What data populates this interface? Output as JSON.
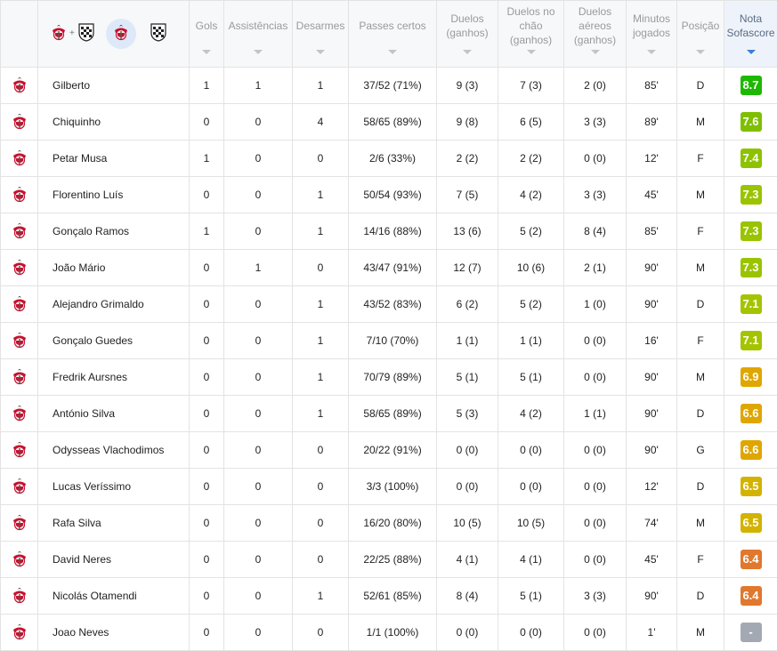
{
  "columns": [
    {
      "key": "team",
      "label": ""
    },
    {
      "key": "name",
      "label": ""
    },
    {
      "key": "goals",
      "label": "Gols"
    },
    {
      "key": "assists",
      "label": "Assistências"
    },
    {
      "key": "tackles",
      "label": "Desarmes"
    },
    {
      "key": "passes",
      "label": "Passes certos"
    },
    {
      "key": "duels",
      "label": "Duelos (ganhos)"
    },
    {
      "key": "ground",
      "label": "Duelos no chão (ganhos)"
    },
    {
      "key": "aerial",
      "label": "Duelos aéreos (ganhos)"
    },
    {
      "key": "minutes",
      "label": "Minutos jogados"
    },
    {
      "key": "position",
      "label": "Posição"
    },
    {
      "key": "rating",
      "label": "Nota Sofascore"
    }
  ],
  "team_filter": {
    "plus_symbol": "+"
  },
  "rating_colors": {
    "dark_green": "#1eb800",
    "green": "#7fbf00",
    "lime": "#a4c400",
    "yellow": "#d3b300",
    "amber": "#dfa600",
    "orange": "#e0782e",
    "none": "#a3a9b3"
  },
  "players": [
    {
      "name": "Gilberto",
      "goals": "1",
      "assists": "1",
      "tackles": "1",
      "passes": "37/52 (71%)",
      "duels": "9 (3)",
      "ground": "7 (3)",
      "aerial": "2 (0)",
      "minutes": "85'",
      "position": "D",
      "rating": "8.7",
      "rating_color": "#1eb800"
    },
    {
      "name": "Chiquinho",
      "goals": "0",
      "assists": "0",
      "tackles": "4",
      "passes": "58/65 (89%)",
      "duels": "9 (8)",
      "ground": "6 (5)",
      "aerial": "3 (3)",
      "minutes": "89'",
      "position": "M",
      "rating": "7.6",
      "rating_color": "#7fbf00"
    },
    {
      "name": "Petar Musa",
      "goals": "1",
      "assists": "0",
      "tackles": "0",
      "passes": "2/6 (33%)",
      "duels": "2 (2)",
      "ground": "2 (2)",
      "aerial": "0 (0)",
      "minutes": "12'",
      "position": "F",
      "rating": "7.4",
      "rating_color": "#8dc200"
    },
    {
      "name": "Florentino Luís",
      "goals": "0",
      "assists": "0",
      "tackles": "1",
      "passes": "50/54 (93%)",
      "duels": "7 (5)",
      "ground": "4 (2)",
      "aerial": "3 (3)",
      "minutes": "45'",
      "position": "M",
      "rating": "7.3",
      "rating_color": "#9ac300"
    },
    {
      "name": "Gonçalo Ramos",
      "goals": "1",
      "assists": "0",
      "tackles": "1",
      "passes": "14/16 (88%)",
      "duels": "13 (6)",
      "ground": "5 (2)",
      "aerial": "8 (4)",
      "minutes": "85'",
      "position": "F",
      "rating": "7.3",
      "rating_color": "#9ac300"
    },
    {
      "name": "João Mário",
      "goals": "0",
      "assists": "1",
      "tackles": "0",
      "passes": "43/47 (91%)",
      "duels": "12 (7)",
      "ground": "10 (6)",
      "aerial": "2 (1)",
      "minutes": "90'",
      "position": "M",
      "rating": "7.3",
      "rating_color": "#9ac300"
    },
    {
      "name": "Alejandro Grimaldo",
      "goals": "0",
      "assists": "0",
      "tackles": "1",
      "passes": "43/52 (83%)",
      "duels": "6 (2)",
      "ground": "5 (2)",
      "aerial": "1 (0)",
      "minutes": "90'",
      "position": "D",
      "rating": "7.1",
      "rating_color": "#a4c400"
    },
    {
      "name": "Gonçalo Guedes",
      "goals": "0",
      "assists": "0",
      "tackles": "1",
      "passes": "7/10 (70%)",
      "duels": "1 (1)",
      "ground": "1 (1)",
      "aerial": "0 (0)",
      "minutes": "16'",
      "position": "F",
      "rating": "7.1",
      "rating_color": "#a4c400"
    },
    {
      "name": "Fredrik Aursnes",
      "goals": "0",
      "assists": "0",
      "tackles": "1",
      "passes": "70/79 (89%)",
      "duels": "5 (1)",
      "ground": "5 (1)",
      "aerial": "0 (0)",
      "minutes": "90'",
      "position": "M",
      "rating": "6.9",
      "rating_color": "#dfa600"
    },
    {
      "name": "António Silva",
      "goals": "0",
      "assists": "0",
      "tackles": "1",
      "passes": "58/65 (89%)",
      "duels": "5 (3)",
      "ground": "4 (2)",
      "aerial": "1 (1)",
      "minutes": "90'",
      "position": "D",
      "rating": "6.6",
      "rating_color": "#dfa600"
    },
    {
      "name": "Odysseas Vlachodimos",
      "goals": "0",
      "assists": "0",
      "tackles": "0",
      "passes": "20/22 (91%)",
      "duels": "0 (0)",
      "ground": "0 (0)",
      "aerial": "0 (0)",
      "minutes": "90'",
      "position": "G",
      "rating": "6.6",
      "rating_color": "#dfa600"
    },
    {
      "name": "Lucas Veríssimo",
      "goals": "0",
      "assists": "0",
      "tackles": "0",
      "passes": "3/3 (100%)",
      "duels": "0 (0)",
      "ground": "0 (0)",
      "aerial": "0 (0)",
      "minutes": "12'",
      "position": "D",
      "rating": "6.5",
      "rating_color": "#d3b300"
    },
    {
      "name": "Rafa Silva",
      "goals": "0",
      "assists": "0",
      "tackles": "0",
      "passes": "16/20 (80%)",
      "duels": "10 (5)",
      "ground": "10 (5)",
      "aerial": "0 (0)",
      "minutes": "74'",
      "position": "M",
      "rating": "6.5",
      "rating_color": "#d3b300"
    },
    {
      "name": "David Neres",
      "goals": "0",
      "assists": "0",
      "tackles": "0",
      "passes": "22/25 (88%)",
      "duels": "4 (1)",
      "ground": "4 (1)",
      "aerial": "0 (0)",
      "minutes": "45'",
      "position": "F",
      "rating": "6.4",
      "rating_color": "#e0782e"
    },
    {
      "name": "Nicolás Otamendi",
      "goals": "0",
      "assists": "0",
      "tackles": "1",
      "passes": "52/61 (85%)",
      "duels": "8 (4)",
      "ground": "5 (1)",
      "aerial": "3 (3)",
      "minutes": "90'",
      "position": "D",
      "rating": "6.4",
      "rating_color": "#e0782e"
    },
    {
      "name": "Joao Neves",
      "goals": "0",
      "assists": "0",
      "tackles": "0",
      "passes": "1/1 (100%)",
      "duels": "0 (0)",
      "ground": "0 (0)",
      "aerial": "0 (0)",
      "minutes": "1'",
      "position": "M",
      "rating": "-",
      "rating_color": "#a3a9b3"
    }
  ]
}
